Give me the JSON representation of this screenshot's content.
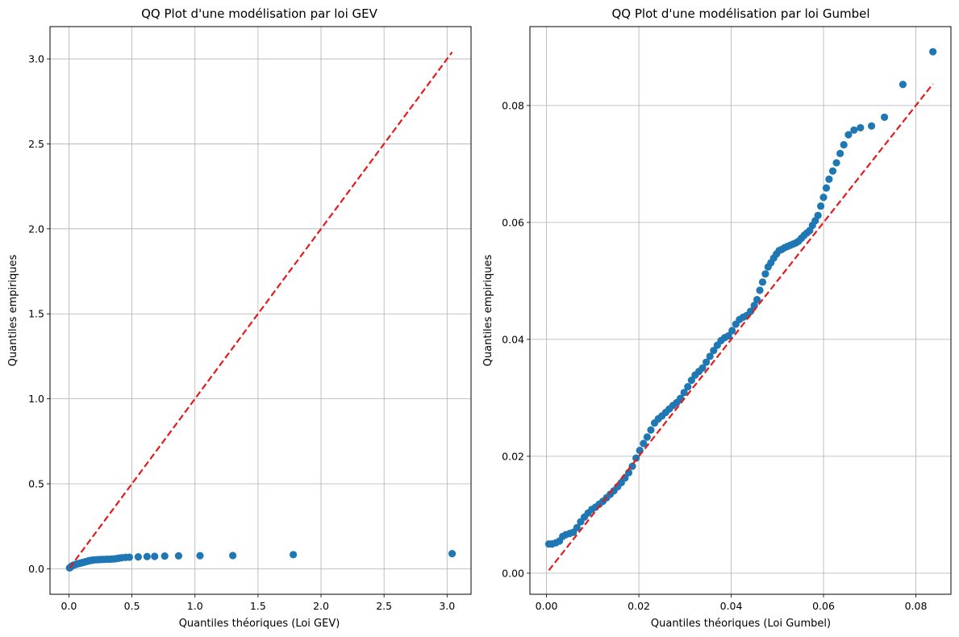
{
  "colors": {
    "points": "#1f77b4",
    "reference_line": "#e41a1c",
    "grid": "#b0b0b0",
    "axes": "#000000"
  },
  "chart_data": [
    {
      "type": "scatter",
      "title": "QQ Plot d'une modélisation par loi GEV",
      "xlabel": "Quantiles théoriques (Loi GEV)",
      "ylabel": "Quantiles empiriques",
      "xlim": [
        -0.15,
        3.19
      ],
      "ylim": [
        -0.15,
        3.19
      ],
      "xticks": [
        0.0,
        0.5,
        1.0,
        1.5,
        2.0,
        2.5,
        3.0
      ],
      "yticks": [
        0.0,
        0.5,
        1.0,
        1.5,
        2.0,
        2.5,
        3.0
      ],
      "xtick_labels": [
        "0.0",
        "0.5",
        "1.0",
        "1.5",
        "2.0",
        "2.5",
        "3.0"
      ],
      "ytick_labels": [
        "0.0",
        "0.5",
        "1.0",
        "1.5",
        "2.0",
        "2.5",
        "3.0"
      ],
      "grid": true,
      "reference_line": {
        "style": "dashed",
        "from": [
          0.005,
          0.005
        ],
        "to": [
          3.04,
          3.04
        ]
      },
      "points": {
        "x": [
          0.005,
          0.01,
          0.015,
          0.02,
          0.025,
          0.03,
          0.04,
          0.05,
          0.06,
          0.07,
          0.08,
          0.09,
          0.1,
          0.11,
          0.12,
          0.13,
          0.14,
          0.15,
          0.16,
          0.17,
          0.18,
          0.19,
          0.2,
          0.22,
          0.24,
          0.26,
          0.28,
          0.3,
          0.32,
          0.34,
          0.36,
          0.38,
          0.4,
          0.42,
          0.45,
          0.48,
          0.55,
          0.62,
          0.68,
          0.76,
          0.87,
          1.04,
          1.3,
          1.78,
          3.04
        ],
        "y": [
          0.005,
          0.008,
          0.011,
          0.014,
          0.017,
          0.019,
          0.022,
          0.025,
          0.027,
          0.029,
          0.031,
          0.033,
          0.035,
          0.037,
          0.039,
          0.041,
          0.043,
          0.045,
          0.047,
          0.049,
          0.05,
          0.051,
          0.052,
          0.053,
          0.054,
          0.055,
          0.055,
          0.056,
          0.056,
          0.057,
          0.058,
          0.06,
          0.063,
          0.065,
          0.067,
          0.068,
          0.07,
          0.072,
          0.073,
          0.075,
          0.076,
          0.077,
          0.078,
          0.083,
          0.089
        ]
      }
    },
    {
      "type": "scatter",
      "title": "QQ Plot d'une modélisation par loi Gumbel",
      "xlabel": "Quantiles théoriques (Loi Gumbel)",
      "ylabel": "Quantiles empiriques",
      "xlim": [
        -0.0036,
        0.0876
      ],
      "ylim": [
        -0.0036,
        0.0935
      ],
      "xticks": [
        0.0,
        0.02,
        0.04,
        0.06,
        0.08
      ],
      "yticks": [
        0.0,
        0.02,
        0.04,
        0.06,
        0.08
      ],
      "xtick_labels": [
        "0.00",
        "0.02",
        "0.04",
        "0.06",
        "0.08"
      ],
      "ytick_labels": [
        "0.00",
        "0.02",
        "0.04",
        "0.06",
        "0.08"
      ],
      "grid": true,
      "reference_line": {
        "style": "dashed",
        "from": [
          0.0005,
          0.0005
        ],
        "to": [
          0.0837,
          0.0837
        ]
      },
      "points": {
        "x": [
          0.0005,
          0.0012,
          0.002,
          0.0028,
          0.0035,
          0.0042,
          0.005,
          0.0058,
          0.0066,
          0.0074,
          0.0082,
          0.009,
          0.0098,
          0.0106,
          0.0114,
          0.0122,
          0.013,
          0.0138,
          0.0146,
          0.0154,
          0.0162,
          0.017,
          0.0178,
          0.0186,
          0.0194,
          0.0202,
          0.021,
          0.0218,
          0.0226,
          0.0234,
          0.0242,
          0.025,
          0.0258,
          0.0266,
          0.0274,
          0.0282,
          0.029,
          0.0298,
          0.0306,
          0.0314,
          0.0322,
          0.033,
          0.0338,
          0.0346,
          0.0354,
          0.0362,
          0.037,
          0.0378,
          0.0386,
          0.0394,
          0.0402,
          0.041,
          0.0418,
          0.0426,
          0.0434,
          0.0442,
          0.045,
          0.0456,
          0.0462,
          0.0468,
          0.0474,
          0.048,
          0.0486,
          0.0492,
          0.0498,
          0.0504,
          0.051,
          0.0516,
          0.0522,
          0.0528,
          0.0534,
          0.054,
          0.0546,
          0.0552,
          0.0558,
          0.0564,
          0.057,
          0.0576,
          0.0582,
          0.0588,
          0.0594,
          0.06,
          0.0606,
          0.0612,
          0.062,
          0.0628,
          0.0636,
          0.0644,
          0.0654,
          0.0666,
          0.068,
          0.0704,
          0.0732,
          0.0772,
          0.0837
        ],
        "y": [
          0.005,
          0.005,
          0.0052,
          0.0055,
          0.0063,
          0.0066,
          0.0068,
          0.007,
          0.0078,
          0.0088,
          0.0096,
          0.0103,
          0.0109,
          0.0113,
          0.0118,
          0.0123,
          0.0129,
          0.0135,
          0.0141,
          0.0148,
          0.0155,
          0.0163,
          0.0172,
          0.0183,
          0.0197,
          0.021,
          0.0222,
          0.0233,
          0.0245,
          0.0257,
          0.0264,
          0.0269,
          0.0275,
          0.0281,
          0.0287,
          0.0292,
          0.0299,
          0.0309,
          0.0319,
          0.033,
          0.0339,
          0.0345,
          0.0351,
          0.0361,
          0.0371,
          0.0381,
          0.039,
          0.0398,
          0.0403,
          0.0406,
          0.0415,
          0.0426,
          0.0434,
          0.0438,
          0.0441,
          0.0448,
          0.0458,
          0.0468,
          0.0484,
          0.0498,
          0.0512,
          0.0524,
          0.0531,
          0.0539,
          0.0546,
          0.0552,
          0.0554,
          0.0557,
          0.0559,
          0.0561,
          0.0563,
          0.0565,
          0.0568,
          0.0573,
          0.0578,
          0.0582,
          0.0586,
          0.0595,
          0.0603,
          0.0612,
          0.0628,
          0.0643,
          0.0659,
          0.0674,
          0.0688,
          0.0702,
          0.0718,
          0.0733,
          0.075,
          0.0758,
          0.0762,
          0.0765,
          0.078,
          0.0836,
          0.0892
        ]
      }
    }
  ]
}
